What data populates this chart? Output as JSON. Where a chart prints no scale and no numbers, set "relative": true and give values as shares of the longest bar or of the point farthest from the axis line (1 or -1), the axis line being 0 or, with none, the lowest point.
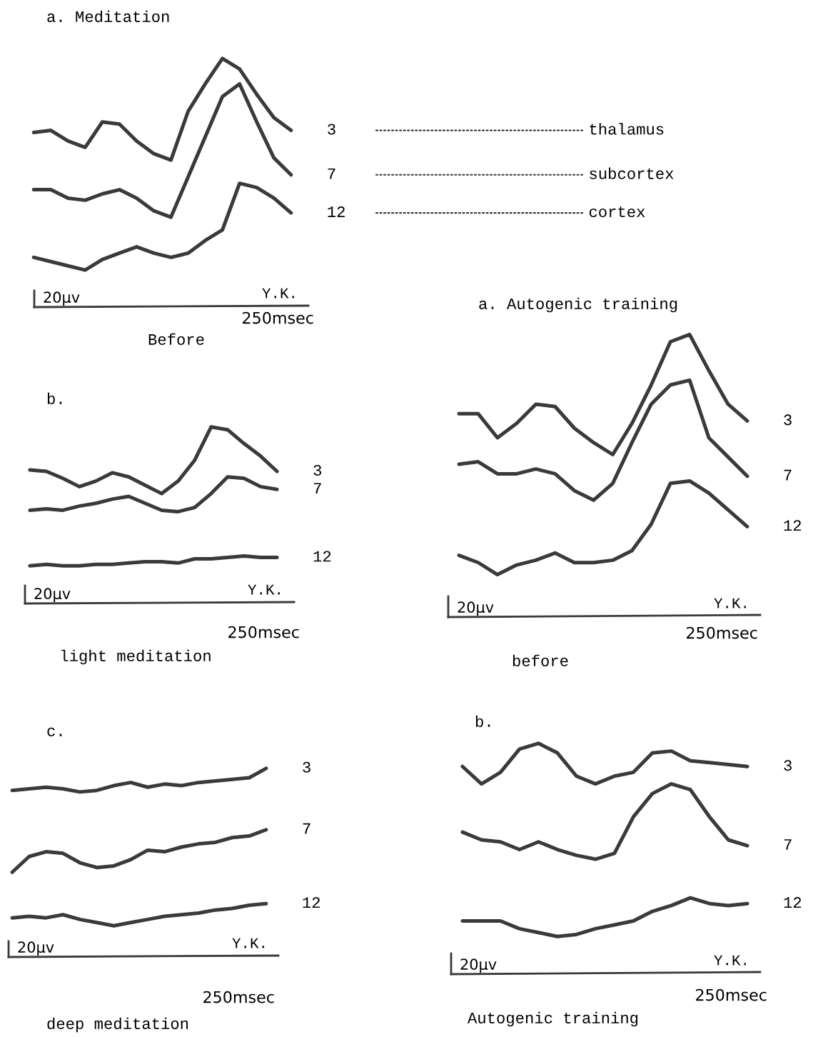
{
  "chart_data": [
    {
      "type": "line",
      "relative": true,
      "title": "a. Meditation",
      "categories": [
        null,
        null,
        null,
        null,
        null,
        null,
        null,
        null,
        null,
        null,
        null,
        null,
        null,
        null,
        null,
        null
      ],
      "series": [
        {
          "name": "3",
          "color": "#3a3a3a",
          "values": [
            0.65,
            0.66,
            0.61,
            0.58,
            0.7,
            0.69,
            0.61,
            0.55,
            0.52,
            0.75,
            0.88,
            1.0,
            0.95,
            0.83,
            0.72,
            0.66
          ]
        },
        {
          "name": "7",
          "color": "#3a3a3a",
          "values": [
            0.38,
            0.38,
            0.34,
            0.33,
            0.36,
            0.38,
            0.34,
            0.28,
            0.25,
            0.44,
            0.63,
            0.82,
            0.88,
            0.7,
            0.53,
            0.45
          ]
        },
        {
          "name": "12",
          "color": "#3a3a3a",
          "values": [
            0.06,
            0.04,
            0.02,
            0.0,
            0.05,
            0.08,
            0.11,
            0.08,
            0.06,
            0.08,
            0.14,
            0.19,
            0.41,
            0.39,
            0.34,
            0.27
          ]
        }
      ],
      "annotations": [
        "20µv",
        "Y.K.",
        "250msec",
        "Before",
        "thalamus",
        "subcortex",
        "cortex"
      ]
    },
    {
      "type": "line",
      "relative": true,
      "title": "a. Autogenic training",
      "categories": [
        null,
        null,
        null,
        null,
        null,
        null,
        null,
        null,
        null,
        null,
        null,
        null,
        null,
        null,
        null,
        null
      ],
      "series": [
        {
          "name": "3",
          "color": "#3a3a3a",
          "values": [
            0.67,
            0.67,
            0.57,
            0.63,
            0.71,
            0.7,
            0.61,
            0.55,
            0.5,
            0.63,
            0.79,
            0.97,
            1.0,
            0.85,
            0.71,
            0.64
          ]
        },
        {
          "name": "7",
          "color": "#3a3a3a",
          "values": [
            0.46,
            0.47,
            0.42,
            0.42,
            0.44,
            0.42,
            0.35,
            0.31,
            0.38,
            0.55,
            0.71,
            0.79,
            0.81,
            0.57,
            0.49,
            0.41
          ]
        },
        {
          "name": "12",
          "color": "#3a3a3a",
          "values": [
            0.08,
            0.05,
            0.0,
            0.04,
            0.06,
            0.09,
            0.05,
            0.05,
            0.06,
            0.1,
            0.21,
            0.38,
            0.39,
            0.34,
            0.27,
            0.2
          ]
        }
      ],
      "annotations": [
        "20µv",
        "Y.K.",
        "250msec",
        "before"
      ]
    },
    {
      "type": "line",
      "relative": true,
      "title": "b.",
      "categories": [
        null,
        null,
        null,
        null,
        null,
        null,
        null,
        null,
        null,
        null,
        null,
        null,
        null,
        null,
        null,
        null
      ],
      "series": [
        {
          "name": "3",
          "color": "#3a3a3a",
          "values": [
            0.69,
            0.68,
            0.63,
            0.57,
            0.61,
            0.67,
            0.64,
            0.58,
            0.52,
            0.61,
            0.76,
            1.0,
            0.98,
            0.88,
            0.79,
            0.68
          ]
        },
        {
          "name": "7",
          "color": "#3a3a3a",
          "values": [
            0.4,
            0.41,
            0.4,
            0.43,
            0.45,
            0.48,
            0.5,
            0.45,
            0.4,
            0.39,
            0.42,
            0.52,
            0.64,
            0.63,
            0.57,
            0.55
          ]
        },
        {
          "name": "12",
          "color": "#3a3a3a",
          "values": [
            0.0,
            0.01,
            0.0,
            0.0,
            0.01,
            0.01,
            0.02,
            0.03,
            0.03,
            0.02,
            0.05,
            0.05,
            0.06,
            0.07,
            0.06,
            0.06
          ]
        }
      ],
      "annotations": [
        "20µv",
        "Y.K.",
        "250msec",
        "light meditation"
      ]
    },
    {
      "type": "line",
      "relative": true,
      "title": "b.",
      "categories": [
        null,
        null,
        null,
        null,
        null,
        null,
        null,
        null,
        null,
        null,
        null,
        null,
        null,
        null,
        null,
        null
      ],
      "series": [
        {
          "name": "3",
          "color": "#3a3a3a",
          "values": [
            0.88,
            0.79,
            0.85,
            0.97,
            1.0,
            0.95,
            0.83,
            0.79,
            0.83,
            0.85,
            0.95,
            0.96,
            0.91,
            0.9,
            0.89,
            0.88
          ]
        },
        {
          "name": "7",
          "color": "#3a3a3a",
          "values": [
            0.54,
            0.5,
            0.49,
            0.45,
            0.49,
            0.45,
            0.42,
            0.4,
            0.43,
            0.62,
            0.74,
            0.79,
            0.76,
            0.62,
            0.5,
            0.47
          ]
        },
        {
          "name": "12",
          "color": "#3a3a3a",
          "values": [
            0.08,
            0.08,
            0.08,
            0.04,
            0.02,
            0.0,
            0.01,
            0.04,
            0.06,
            0.08,
            0.13,
            0.16,
            0.2,
            0.17,
            0.16,
            0.17
          ]
        }
      ],
      "annotations": [
        "20µv",
        "Y.K.",
        "250msec",
        "Autogenic training"
      ]
    },
    {
      "type": "line",
      "relative": true,
      "title": "c.",
      "categories": [
        null,
        null,
        null,
        null,
        null,
        null,
        null,
        null,
        null,
        null,
        null,
        null,
        null,
        null,
        null,
        null
      ],
      "series": [
        {
          "name": "3",
          "color": "#3a3a3a",
          "values": [
            0.86,
            0.87,
            0.88,
            0.87,
            0.85,
            0.86,
            0.89,
            0.91,
            0.88,
            0.9,
            0.89,
            0.91,
            0.92,
            0.93,
            0.94,
            1.0
          ]
        },
        {
          "name": "7",
          "color": "#3a3a3a",
          "values": [
            0.34,
            0.44,
            0.47,
            0.46,
            0.4,
            0.37,
            0.38,
            0.42,
            0.48,
            0.47,
            0.5,
            0.52,
            0.53,
            0.56,
            0.57,
            0.61
          ]
        },
        {
          "name": "12",
          "color": "#3a3a3a",
          "values": [
            0.05,
            0.06,
            0.05,
            0.07,
            0.04,
            0.02,
            0.0,
            0.02,
            0.04,
            0.06,
            0.07,
            0.08,
            0.1,
            0.11,
            0.13,
            0.14
          ]
        }
      ],
      "annotations": [
        "20µv",
        "Y.K.",
        "250msec",
        "deep meditation"
      ]
    }
  ]
}
